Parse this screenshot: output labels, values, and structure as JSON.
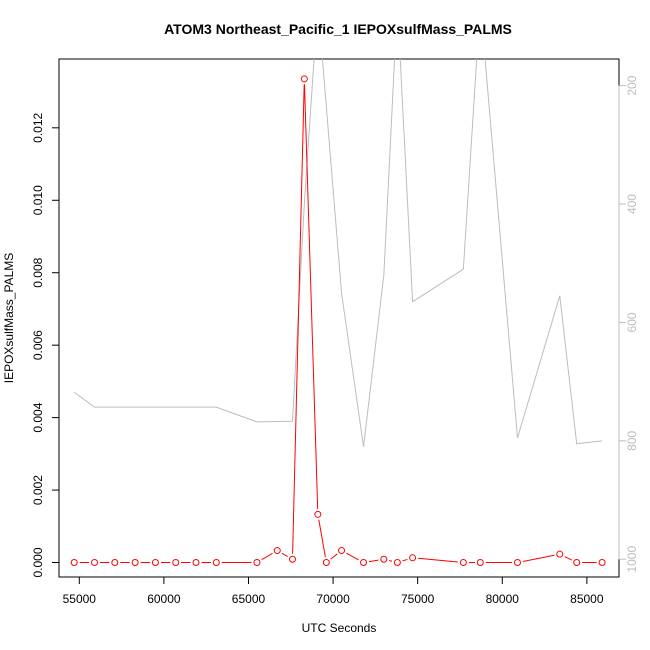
{
  "chart_data": {
    "type": "line",
    "title": "ATOM3 Northeast_Pacific_1 IEPOXsulfMass_PALMS",
    "xlabel": "UTC Seconds",
    "ylabel": "IEPOXsulfMass_PALMS",
    "xlim": [
      53800,
      86900
    ],
    "ylim": [
      -0.0004,
      0.0139
    ],
    "x_ticks": [
      "55000",
      "60000",
      "65000",
      "70000",
      "75000",
      "80000",
      "85000"
    ],
    "y_ticks": [
      "0.000",
      "0.002",
      "0.004",
      "0.006",
      "0.008",
      "0.010",
      "0.012"
    ],
    "y2_ticks": [
      "200",
      "400",
      "600",
      "800",
      "1000"
    ],
    "y2lim": [
      1030,
      155
    ],
    "y2_reversed": true,
    "grid": false,
    "series": [
      {
        "color": "#ff0000",
        "axis": "left",
        "marker": "open-circle",
        "x": [
          54700,
          55900,
          57100,
          58300,
          59500,
          60700,
          61900,
          63100,
          65500,
          66700,
          67600,
          68300,
          69100,
          69600,
          70500,
          71800,
          73000,
          73800,
          74700,
          77700,
          78700,
          80900,
          83400,
          84400,
          85900
        ],
        "y": [
          0.0,
          0.0,
          0.0,
          0.0,
          0.0,
          0.0,
          0.0,
          0.0,
          0.0,
          0.00033,
          9e-05,
          0.01335,
          0.00133,
          0.0,
          0.00033,
          0.0,
          9e-05,
          0.0,
          0.00013,
          0.0,
          0.0,
          0.0,
          0.00023,
          0.0,
          0.0
        ]
      },
      {
        "color": "#bdbdbd",
        "axis": "right",
        "marker": "none",
        "x": [
          54700,
          55900,
          63100,
          65500,
          67600,
          68300,
          69100,
          70500,
          71800,
          73000,
          73800,
          74700,
          77700,
          78700,
          80900,
          83400,
          84400,
          85900
        ],
        "y": [
          718,
          743,
          743,
          768,
          767,
          400,
          60,
          550,
          810,
          520,
          60,
          565,
          510,
          60,
          795,
          555,
          805,
          800
        ]
      }
    ]
  }
}
